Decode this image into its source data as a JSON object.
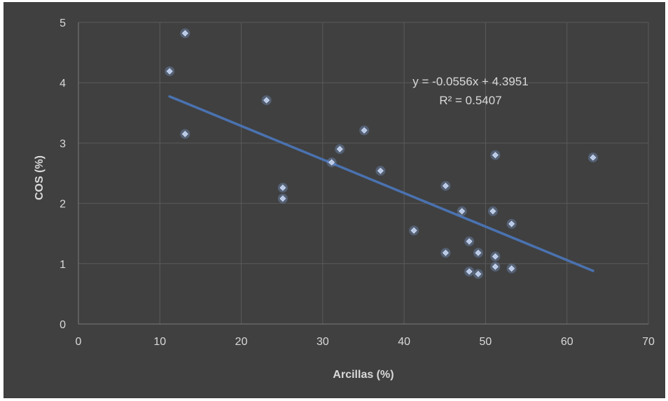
{
  "chart_data": {
    "type": "scatter",
    "xlabel": "Arcillas  (%)",
    "ylabel": "COS  (%)",
    "xlim": [
      0,
      70
    ],
    "ylim": [
      0,
      5
    ],
    "x_ticks": [
      "0",
      "10",
      "20",
      "30",
      "40",
      "50",
      "60",
      "70"
    ],
    "y_ticks": [
      "0",
      "1",
      "2",
      "3",
      "4",
      "5"
    ],
    "grid": true,
    "legend": "none",
    "colors": {
      "background": "#404040",
      "marker": "#b7c8e8",
      "trendline": "#4a72b0",
      "text": "#d9d9d9",
      "grid": "#5a5a5a"
    },
    "series": [
      {
        "points": [
          [
            11.2,
            4.19
          ],
          [
            13.1,
            4.82
          ],
          [
            13.1,
            3.15
          ],
          [
            23.1,
            3.71
          ],
          [
            25.1,
            2.26
          ],
          [
            25.1,
            2.08
          ],
          [
            31.1,
            2.68
          ],
          [
            32.1,
            2.9
          ],
          [
            35.1,
            3.21
          ],
          [
            37.1,
            2.54
          ],
          [
            41.2,
            1.55
          ],
          [
            45.1,
            2.29
          ],
          [
            45.1,
            1.18
          ],
          [
            47.1,
            1.87
          ],
          [
            48.0,
            1.37
          ],
          [
            48.0,
            0.87
          ],
          [
            49.1,
            1.18
          ],
          [
            49.1,
            0.83
          ],
          [
            50.9,
            1.87
          ],
          [
            51.2,
            2.8
          ],
          [
            51.2,
            1.12
          ],
          [
            51.2,
            0.95
          ],
          [
            53.2,
            1.66
          ],
          [
            53.2,
            0.92
          ],
          [
            63.2,
            2.76
          ]
        ]
      }
    ],
    "trendline": {
      "type": "linear",
      "slope": -0.0556,
      "intercept": 4.3951,
      "x_range": [
        11.2,
        63.2
      ],
      "equation_label": "y = -0.0556x + 4.3951",
      "r2_label": "R² = 0.5407"
    }
  }
}
